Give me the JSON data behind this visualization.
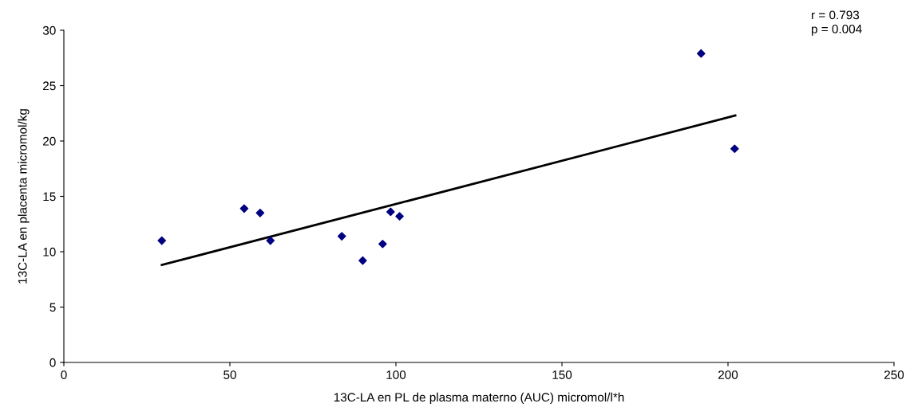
{
  "chart_data": {
    "type": "scatter",
    "xlabel": "13C-LA en PL de plasma materno (AUC) micromol/l*h",
    "ylabel": "13C-LA en placenta micromol/kg",
    "xlim": [
      0,
      250
    ],
    "xticks": [
      0,
      50,
      100,
      150,
      200,
      250
    ],
    "ylim": [
      0,
      30
    ],
    "yticks": [
      0,
      5,
      10,
      15,
      20,
      25,
      30
    ],
    "grid": false,
    "legend": false,
    "marker": "diamond",
    "annotations": [
      "r = 0.793\np = 0.004"
    ],
    "series": [
      {
        "color": "#000080",
        "x": [
          29.5,
          54.3,
          59.1,
          62.2,
          83.7,
          90.0,
          96.0,
          98.4,
          101.1,
          191.9,
          202.0
        ],
        "values": [
          11.0,
          13.9,
          13.5,
          11.0,
          11.4,
          9.2,
          10.7,
          13.6,
          13.2,
          27.9,
          19.3
        ]
      },
      {
        "type": "line",
        "color": "#000000",
        "x": [
          29.5,
          202.2
        ],
        "values": [
          8.8,
          22.3
        ],
        "marker": "none",
        "line_style": "solid"
      }
    ]
  }
}
